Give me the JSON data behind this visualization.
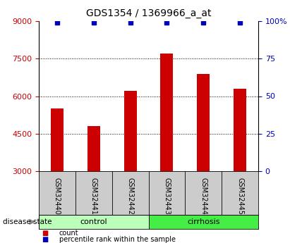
{
  "title": "GDS1354 / 1369966_a_at",
  "samples": [
    "GSM32440",
    "GSM32441",
    "GSM32442",
    "GSM32443",
    "GSM32444",
    "GSM32445"
  ],
  "counts": [
    5500,
    4800,
    6200,
    7700,
    6900,
    6300
  ],
  "percentile_ranks": [
    99,
    99,
    99,
    99,
    99,
    99
  ],
  "ylim_left": [
    3000,
    9000
  ],
  "ylim_right": [
    0,
    100
  ],
  "yticks_left": [
    3000,
    4500,
    6000,
    7500,
    9000
  ],
  "yticks_right": [
    0,
    25,
    50,
    75,
    100
  ],
  "groups": [
    {
      "label": "control",
      "indices": [
        0,
        1,
        2
      ],
      "color": "#BBFFBB"
    },
    {
      "label": "cirrhosis",
      "indices": [
        3,
        4,
        5
      ],
      "color": "#44DD44"
    }
  ],
  "bar_color": "#CC0000",
  "dot_color": "#0000BB",
  "bar_width": 0.35,
  "background_color": "#FFFFFF",
  "title_fontsize": 10,
  "tick_fontsize": 8,
  "label_fontsize": 7,
  "disease_state_label": "disease state",
  "legend_items": [
    {
      "label": "count",
      "color": "#CC0000"
    },
    {
      "label": "percentile rank within the sample",
      "color": "#0000BB"
    }
  ],
  "grid_yticks": [
    4500,
    6000,
    7500
  ]
}
